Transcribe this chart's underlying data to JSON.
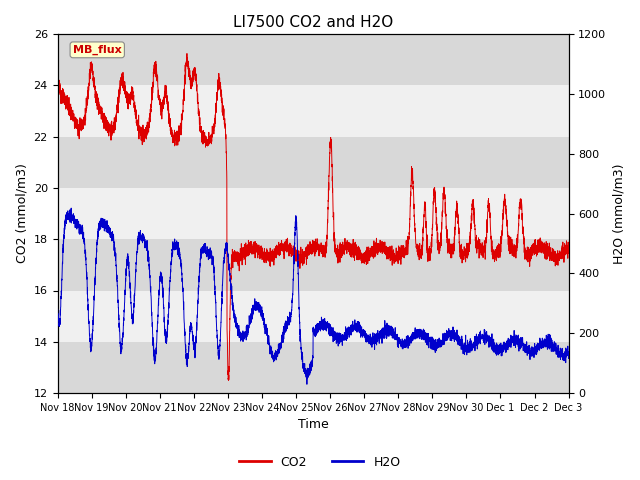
{
  "title": "LI7500 CO2 and H2O",
  "xlabel": "Time",
  "ylabel_left": "CO2 (mmol/m3)",
  "ylabel_right": "H2O (mmol/m3)",
  "ylim_left": [
    12,
    26
  ],
  "ylim_right": [
    0,
    1200
  ],
  "yticks_left": [
    12,
    14,
    16,
    18,
    20,
    22,
    24,
    26
  ],
  "yticks_right": [
    0,
    200,
    400,
    600,
    800,
    1000,
    1200
  ],
  "xtick_labels": [
    "Nov 18",
    "Nov 19",
    "Nov 20",
    "Nov 21",
    "Nov 22",
    "Nov 23",
    "Nov 24",
    "Nov 25",
    "Nov 26",
    "Nov 27",
    "Nov 28",
    "Nov 29",
    "Nov 30",
    "Dec 1",
    "Dec 2",
    "Dec 3"
  ],
  "watermark_text": "MB_flux",
  "watermark_bg": "#ffffcc",
  "watermark_fg": "#cc0000",
  "co2_color": "#dd0000",
  "h2o_color": "#0000cc",
  "legend_co2": "CO2",
  "legend_h2o": "H2O",
  "bg_color": "#ffffff",
  "plot_bg_light": "#f0f0f0",
  "plot_bg_dark": "#d8d8d8",
  "title_fontsize": 11,
  "axis_label_fontsize": 9,
  "tick_fontsize": 8,
  "n_days": 16,
  "figsize": [
    6.4,
    4.8
  ],
  "dpi": 100
}
